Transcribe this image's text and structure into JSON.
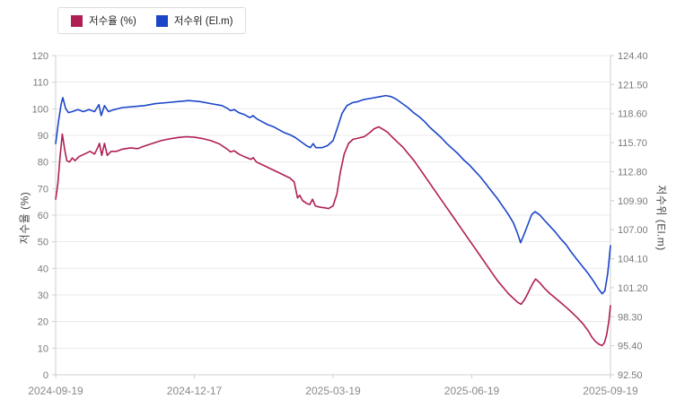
{
  "chart_data": {
    "type": "line",
    "title": "",
    "ylabel_left": "저수율 (%)",
    "ylabel_right": "저수위 (El.m)",
    "grid": true,
    "legend_position": "top-left",
    "x_tick_labels": [
      "2024-09-19",
      "2024-12-17",
      "2025-03-19",
      "2025-06-19",
      "2025-09-19"
    ],
    "y_left": {
      "min": 0,
      "max": 120
    },
    "y_right": {
      "min": 92.5,
      "max": 124.4
    },
    "y_left_ticks": [
      "0",
      "10",
      "20",
      "30",
      "40",
      "50",
      "60",
      "70",
      "80",
      "90",
      "100",
      "110",
      "120"
    ],
    "y_right_ticks": [
      "92.50",
      "95.40",
      "98.30",
      "101.20",
      "104.10",
      "107.00",
      "109.90",
      "112.80",
      "115.70",
      "118.60",
      "121.50",
      "124.40"
    ],
    "series": [
      {
        "name": "저수율 (%)",
        "color": "#b01e56",
        "axis": "left",
        "points": [
          [
            0.0,
            66
          ],
          [
            0.004,
            72
          ],
          [
            0.008,
            82
          ],
          [
            0.012,
            90.5
          ],
          [
            0.016,
            85
          ],
          [
            0.02,
            80.5
          ],
          [
            0.025,
            80
          ],
          [
            0.03,
            81.5
          ],
          [
            0.035,
            80.5
          ],
          [
            0.042,
            82
          ],
          [
            0.052,
            83
          ],
          [
            0.062,
            84
          ],
          [
            0.07,
            83
          ],
          [
            0.076,
            85.5
          ],
          [
            0.079,
            87
          ],
          [
            0.083,
            82.5
          ],
          [
            0.088,
            87
          ],
          [
            0.093,
            82.5
          ],
          [
            0.1,
            84
          ],
          [
            0.11,
            84
          ],
          [
            0.12,
            84.8
          ],
          [
            0.135,
            85.3
          ],
          [
            0.148,
            85
          ],
          [
            0.16,
            86
          ],
          [
            0.175,
            87
          ],
          [
            0.19,
            88
          ],
          [
            0.205,
            88.7
          ],
          [
            0.22,
            89.2
          ],
          [
            0.235,
            89.5
          ],
          [
            0.25,
            89.3
          ],
          [
            0.265,
            88.8
          ],
          [
            0.28,
            88
          ],
          [
            0.295,
            86.8
          ],
          [
            0.308,
            85
          ],
          [
            0.315,
            83.8
          ],
          [
            0.322,
            84.2
          ],
          [
            0.33,
            83
          ],
          [
            0.34,
            82
          ],
          [
            0.352,
            81
          ],
          [
            0.356,
            81.6
          ],
          [
            0.362,
            80
          ],
          [
            0.372,
            79
          ],
          [
            0.382,
            78
          ],
          [
            0.392,
            77
          ],
          [
            0.402,
            76
          ],
          [
            0.412,
            75
          ],
          [
            0.422,
            74
          ],
          [
            0.43,
            72.5
          ],
          [
            0.436,
            66.5
          ],
          [
            0.44,
            67.5
          ],
          [
            0.445,
            65.5
          ],
          [
            0.452,
            64.5
          ],
          [
            0.458,
            64
          ],
          [
            0.463,
            66
          ],
          [
            0.468,
            63.5
          ],
          [
            0.476,
            63
          ],
          [
            0.484,
            62.8
          ],
          [
            0.492,
            62.5
          ],
          [
            0.5,
            63.5
          ],
          [
            0.507,
            68
          ],
          [
            0.513,
            76
          ],
          [
            0.52,
            83
          ],
          [
            0.528,
            87
          ],
          [
            0.536,
            88.5
          ],
          [
            0.546,
            89
          ],
          [
            0.556,
            89.5
          ],
          [
            0.566,
            91
          ],
          [
            0.574,
            92.5
          ],
          [
            0.582,
            93.2
          ],
          [
            0.59,
            92.3
          ],
          [
            0.598,
            91.2
          ],
          [
            0.606,
            89.5
          ],
          [
            0.616,
            87.5
          ],
          [
            0.626,
            85.5
          ],
          [
            0.636,
            83
          ],
          [
            0.646,
            80.5
          ],
          [
            0.656,
            77.5
          ],
          [
            0.666,
            74.5
          ],
          [
            0.676,
            71.5
          ],
          [
            0.686,
            68.5
          ],
          [
            0.696,
            65.5
          ],
          [
            0.706,
            62.5
          ],
          [
            0.716,
            59.5
          ],
          [
            0.726,
            56.5
          ],
          [
            0.736,
            53.5
          ],
          [
            0.746,
            50.5
          ],
          [
            0.756,
            47.5
          ],
          [
            0.766,
            44.5
          ],
          [
            0.776,
            41.5
          ],
          [
            0.786,
            38.5
          ],
          [
            0.796,
            35.5
          ],
          [
            0.806,
            33
          ],
          [
            0.816,
            30.5
          ],
          [
            0.826,
            28.5
          ],
          [
            0.833,
            27.2
          ],
          [
            0.839,
            26.5
          ],
          [
            0.846,
            28.5
          ],
          [
            0.853,
            31.5
          ],
          [
            0.859,
            34
          ],
          [
            0.865,
            36
          ],
          [
            0.873,
            34.5
          ],
          [
            0.881,
            32.5
          ],
          [
            0.891,
            30.5
          ],
          [
            0.901,
            28.8
          ],
          [
            0.911,
            27
          ],
          [
            0.921,
            25.2
          ],
          [
            0.931,
            23.3
          ],
          [
            0.941,
            21.3
          ],
          [
            0.951,
            19
          ],
          [
            0.96,
            16.5
          ],
          [
            0.967,
            14
          ],
          [
            0.973,
            12.5
          ],
          [
            0.979,
            11.5
          ],
          [
            0.985,
            11
          ],
          [
            0.989,
            12
          ],
          [
            0.993,
            15
          ],
          [
            0.997,
            20
          ],
          [
            1.0,
            26
          ]
        ]
      },
      {
        "name": "저수위 (El.m)",
        "color": "#1b46c8",
        "axis": "right",
        "points": [
          [
            0.0,
            115.6
          ],
          [
            0.005,
            117.8
          ],
          [
            0.01,
            119.6
          ],
          [
            0.013,
            120.2
          ],
          [
            0.018,
            119.1
          ],
          [
            0.023,
            118.7
          ],
          [
            0.03,
            118.8
          ],
          [
            0.04,
            119.0
          ],
          [
            0.05,
            118.8
          ],
          [
            0.06,
            119.0
          ],
          [
            0.07,
            118.8
          ],
          [
            0.078,
            119.5
          ],
          [
            0.082,
            118.4
          ],
          [
            0.088,
            119.4
          ],
          [
            0.095,
            118.8
          ],
          [
            0.105,
            119.0
          ],
          [
            0.12,
            119.2
          ],
          [
            0.14,
            119.3
          ],
          [
            0.16,
            119.4
          ],
          [
            0.18,
            119.6
          ],
          [
            0.2,
            119.7
          ],
          [
            0.22,
            119.8
          ],
          [
            0.24,
            119.9
          ],
          [
            0.26,
            119.8
          ],
          [
            0.28,
            119.6
          ],
          [
            0.3,
            119.4
          ],
          [
            0.31,
            119.1
          ],
          [
            0.315,
            118.9
          ],
          [
            0.322,
            119.0
          ],
          [
            0.33,
            118.7
          ],
          [
            0.34,
            118.5
          ],
          [
            0.35,
            118.2
          ],
          [
            0.356,
            118.4
          ],
          [
            0.362,
            118.1
          ],
          [
            0.372,
            117.8
          ],
          [
            0.382,
            117.5
          ],
          [
            0.392,
            117.3
          ],
          [
            0.402,
            117.0
          ],
          [
            0.412,
            116.7
          ],
          [
            0.422,
            116.5
          ],
          [
            0.432,
            116.2
          ],
          [
            0.442,
            115.8
          ],
          [
            0.452,
            115.4
          ],
          [
            0.459,
            115.2
          ],
          [
            0.464,
            115.6
          ],
          [
            0.469,
            115.2
          ],
          [
            0.48,
            115.2
          ],
          [
            0.49,
            115.4
          ],
          [
            0.5,
            115.9
          ],
          [
            0.508,
            117.2
          ],
          [
            0.516,
            118.6
          ],
          [
            0.525,
            119.4
          ],
          [
            0.535,
            119.7
          ],
          [
            0.545,
            119.8
          ],
          [
            0.555,
            120.0
          ],
          [
            0.565,
            120.1
          ],
          [
            0.575,
            120.2
          ],
          [
            0.585,
            120.3
          ],
          [
            0.595,
            120.4
          ],
          [
            0.605,
            120.3
          ],
          [
            0.615,
            120.0
          ],
          [
            0.625,
            119.6
          ],
          [
            0.635,
            119.2
          ],
          [
            0.645,
            118.7
          ],
          [
            0.655,
            118.3
          ],
          [
            0.665,
            117.8
          ],
          [
            0.675,
            117.2
          ],
          [
            0.685,
            116.7
          ],
          [
            0.695,
            116.2
          ],
          [
            0.705,
            115.6
          ],
          [
            0.715,
            115.1
          ],
          [
            0.725,
            114.6
          ],
          [
            0.735,
            114.0
          ],
          [
            0.745,
            113.5
          ],
          [
            0.755,
            112.9
          ],
          [
            0.765,
            112.3
          ],
          [
            0.775,
            111.6
          ],
          [
            0.785,
            110.9
          ],
          [
            0.795,
            110.2
          ],
          [
            0.805,
            109.4
          ],
          [
            0.815,
            108.6
          ],
          [
            0.825,
            107.7
          ],
          [
            0.832,
            106.7
          ],
          [
            0.838,
            105.7
          ],
          [
            0.844,
            106.5
          ],
          [
            0.851,
            107.5
          ],
          [
            0.858,
            108.5
          ],
          [
            0.864,
            108.8
          ],
          [
            0.872,
            108.5
          ],
          [
            0.88,
            108.0
          ],
          [
            0.89,
            107.4
          ],
          [
            0.9,
            106.8
          ],
          [
            0.91,
            106.1
          ],
          [
            0.92,
            105.5
          ],
          [
            0.93,
            104.7
          ],
          [
            0.94,
            104.0
          ],
          [
            0.95,
            103.3
          ],
          [
            0.96,
            102.6
          ],
          [
            0.97,
            101.8
          ],
          [
            0.978,
            101.1
          ],
          [
            0.985,
            100.6
          ],
          [
            0.99,
            100.9
          ],
          [
            0.995,
            102.6
          ],
          [
            1.0,
            105.4
          ]
        ]
      }
    ]
  }
}
